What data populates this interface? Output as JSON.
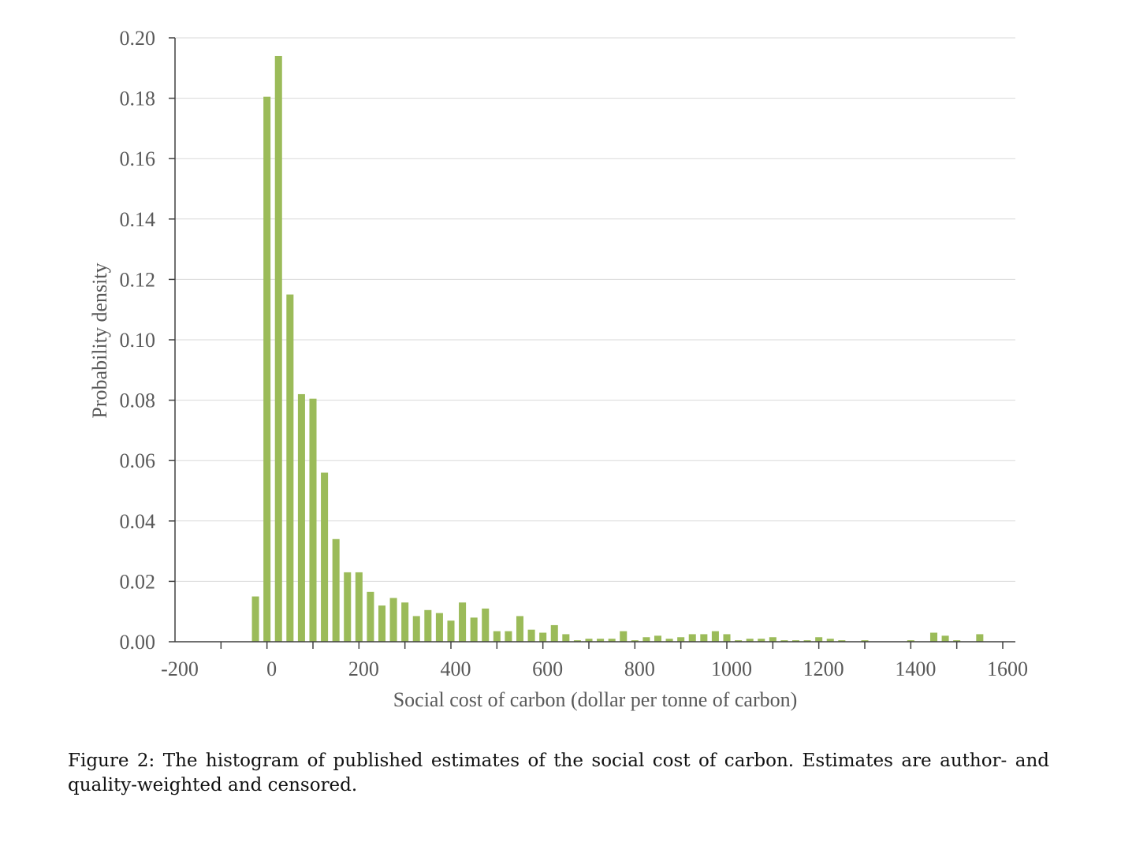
{
  "chart_data": {
    "type": "bar",
    "xlabel": "Social cost of carbon (dollar per tonne of carbon)",
    "ylabel": "Probability density",
    "xlim": [
      -200,
      1600
    ],
    "ylim": [
      0,
      0.2
    ],
    "x_ticks": [
      "-200",
      "0",
      "200",
      "400",
      "600",
      "800",
      "1000",
      "1200",
      "1400",
      "1600"
    ],
    "y_ticks": [
      "0.00",
      "0.02",
      "0.04",
      "0.06",
      "0.08",
      "0.10",
      "0.12",
      "0.14",
      "0.16",
      "0.18",
      "0.20"
    ],
    "grid": true,
    "bar_color": "#9BBB59",
    "x": [
      -175,
      -150,
      -125,
      -100,
      -75,
      -50,
      -25,
      0,
      25,
      50,
      75,
      100,
      125,
      150,
      175,
      200,
      225,
      250,
      275,
      300,
      325,
      350,
      375,
      400,
      425,
      450,
      475,
      500,
      525,
      550,
      575,
      600,
      625,
      650,
      675,
      700,
      725,
      750,
      775,
      800,
      825,
      850,
      875,
      900,
      925,
      950,
      975,
      1000,
      1025,
      1050,
      1075,
      1100,
      1125,
      1150,
      1175,
      1200,
      1225,
      1250,
      1275,
      1300,
      1325,
      1350,
      1375,
      1400,
      1425,
      1450,
      1475,
      1500,
      1525,
      1550
    ],
    "values": [
      0,
      0,
      0,
      0,
      0,
      0,
      0.015,
      0.1805,
      0.194,
      0.115,
      0.082,
      0.0805,
      0.056,
      0.034,
      0.023,
      0.023,
      0.0165,
      0.012,
      0.0145,
      0.013,
      0.0085,
      0.0105,
      0.0095,
      0.007,
      0.013,
      0.008,
      0.011,
      0.0035,
      0.0035,
      0.0085,
      0.004,
      0.003,
      0.0055,
      0.0025,
      0.0005,
      0.001,
      0.001,
      0.001,
      0.0035,
      0.0005,
      0.0015,
      0.002,
      0.001,
      0.0015,
      0.0025,
      0.0025,
      0.0035,
      0.0025,
      0.0005,
      0.001,
      0.001,
      0.0015,
      0.0005,
      0.0005,
      0.0005,
      0.0015,
      0.001,
      0.0005,
      0,
      0.0005,
      0,
      0,
      0,
      0.0005,
      0,
      0.003,
      0.002,
      0.0005,
      0,
      0.0025
    ]
  },
  "caption": "Figure 2: The histogram of published estimates of the social cost of carbon. Estimates are author- and quality-weighted and censored."
}
